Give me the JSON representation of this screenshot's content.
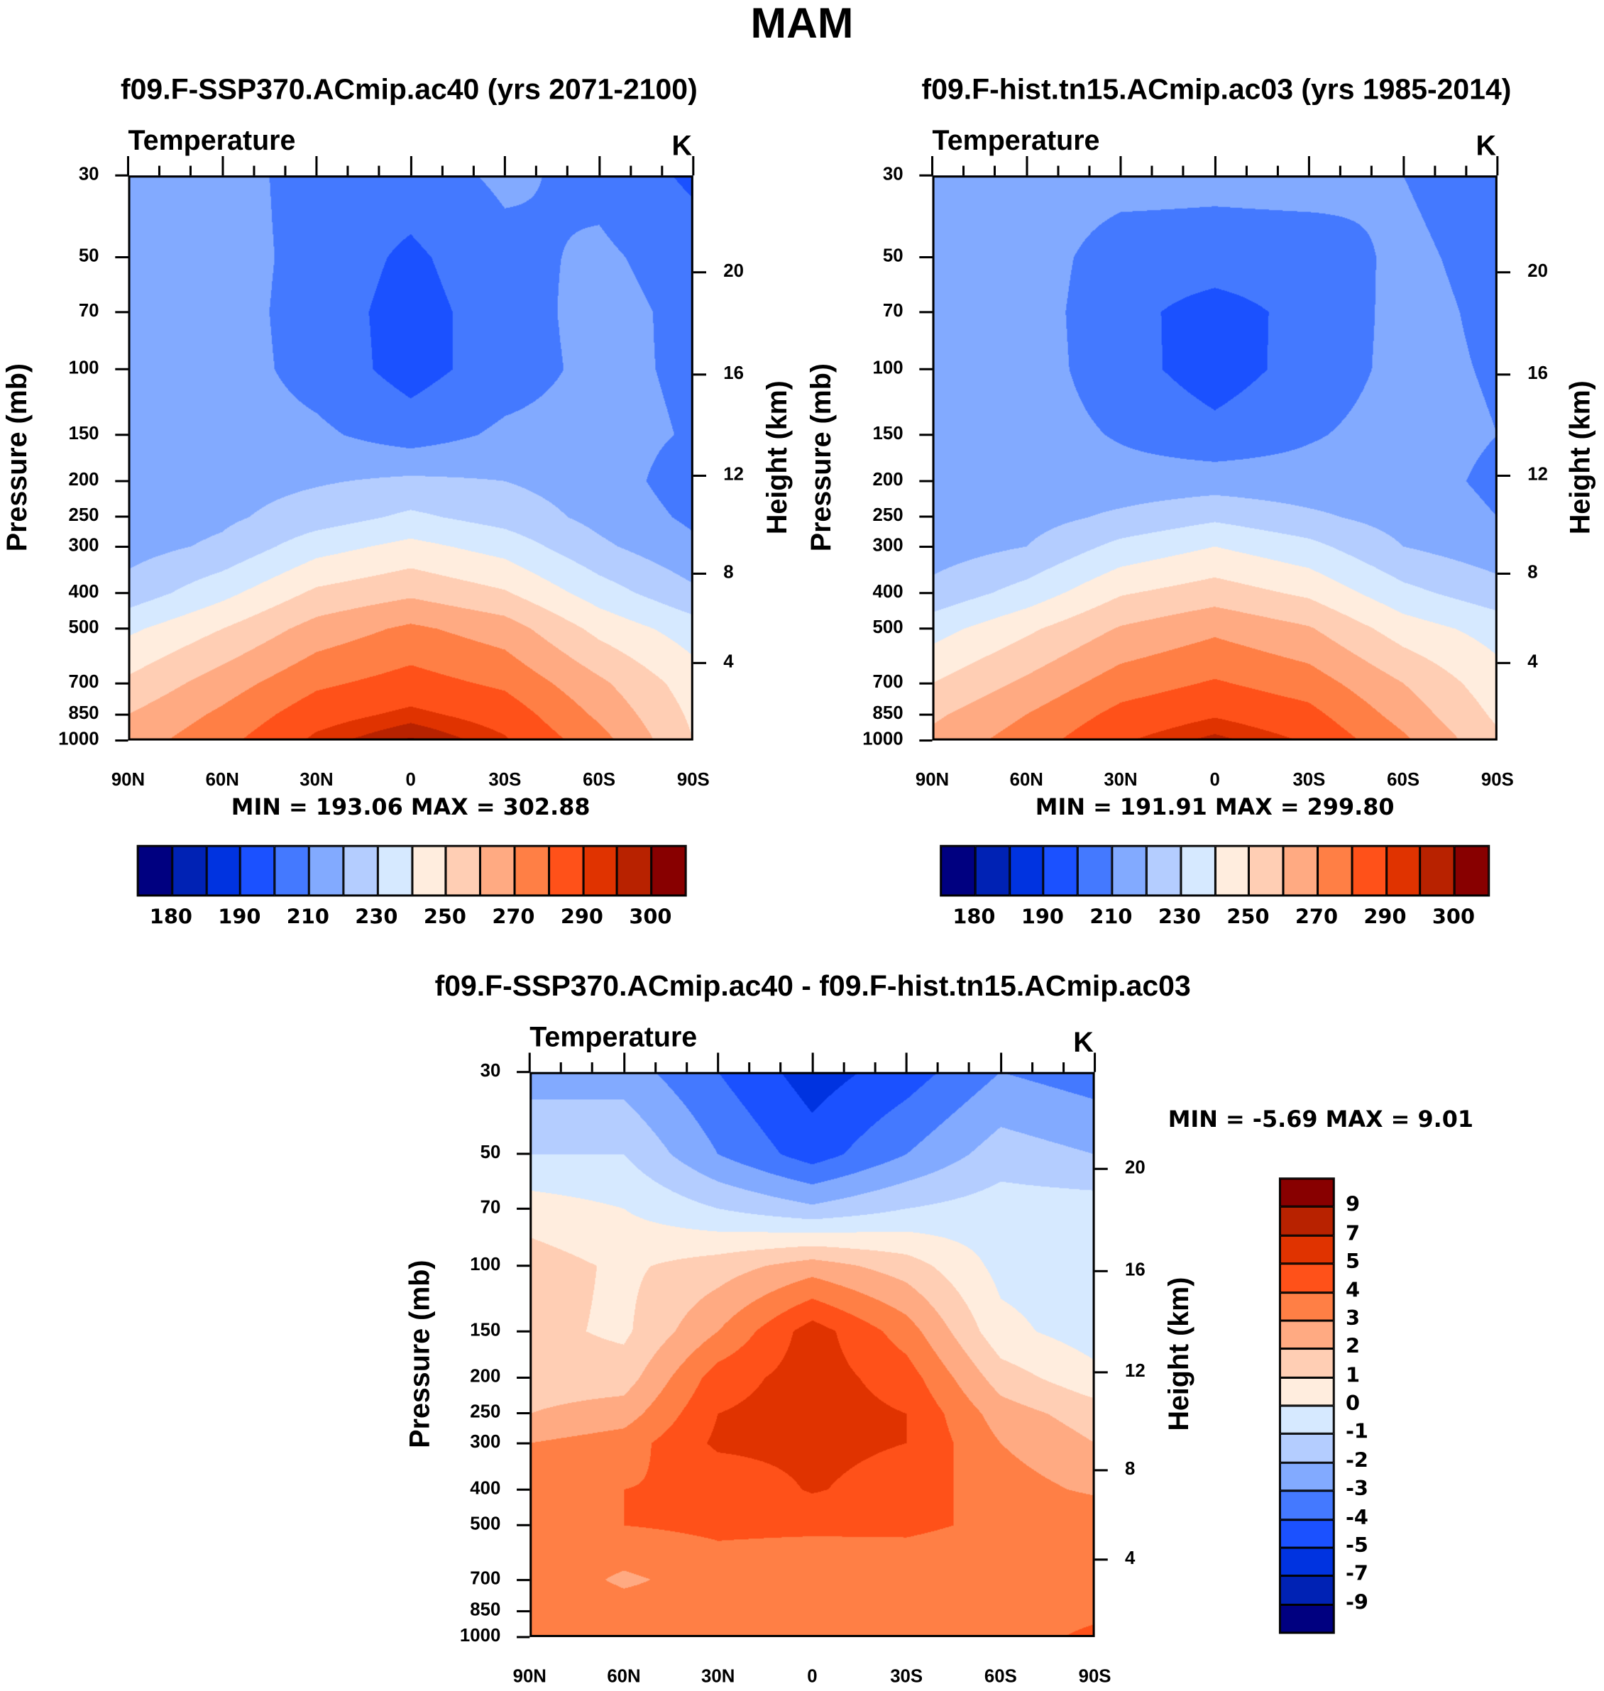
{
  "page_title": "MAM",
  "colors": [
    "#000080",
    "#0022b4",
    "#0033e0",
    "#1b51ff",
    "#4479ff",
    "#82aaff",
    "#b4cdff",
    "#d6e9ff",
    "#ffedde",
    "#ffceb4",
    "#ffaa82",
    "#ff7f45",
    "#ff5119",
    "#e03300",
    "#b82200",
    "#880000"
  ],
  "chart_data": [
    {
      "type": "heatmap",
      "title": "f09.F-SSP370.ACmip.ac40 (yrs 2071-2100)",
      "variable_label": "Temperature",
      "units": "K",
      "ylabel": "Pressure (mb)",
      "ylabel_right": "Height (km)",
      "x_ticks": [
        "90N",
        "60N",
        "30N",
        "0",
        "30S",
        "60S",
        "90S"
      ],
      "x_values": [
        90,
        60,
        30,
        0,
        -30,
        -60,
        -90
      ],
      "pressure_levels": [
        30,
        50,
        70,
        100,
        150,
        200,
        250,
        300,
        400,
        500,
        700,
        850,
        1000
      ],
      "pressure_tick_labels": [
        "30",
        "50",
        "70",
        "100",
        "150",
        "200",
        "250",
        "300",
        "400",
        "500",
        "700",
        "850",
        "1000"
      ],
      "height_ticks": [
        "20",
        "16",
        "12",
        "8",
        "4"
      ],
      "min_max_text": "MIN = 193.06  MAX = 302.88",
      "contour_levels": [
        180,
        185,
        190,
        200,
        210,
        220,
        230,
        240,
        250,
        260,
        270,
        280,
        290,
        295,
        300
      ],
      "colorbar_labels": [
        "180",
        "190",
        "210",
        "230",
        "250",
        "270",
        "290",
        "300"
      ],
      "values": [
        [
          215,
          215,
          205,
          205,
          212,
          207,
          198
        ],
        [
          215,
          215,
          206,
          198,
          207,
          212,
          205
        ],
        [
          215,
          215,
          205,
          196,
          205,
          214,
          207
        ],
        [
          215,
          215,
          206,
          196,
          205,
          213,
          208
        ],
        [
          215,
          215,
          212,
          205,
          212,
          214,
          209
        ],
        [
          214,
          216,
          219,
          222,
          220,
          215,
          205
        ],
        [
          214,
          218,
          225,
          232,
          226,
          217,
          208
        ],
        [
          216,
          222,
          236,
          243,
          236,
          222,
          212
        ],
        [
          224,
          237,
          252,
          258,
          251,
          235,
          222
        ],
        [
          238,
          250,
          264,
          272,
          265,
          247,
          235
        ],
        [
          252,
          265,
          278,
          284,
          278,
          262,
          245
        ],
        [
          260,
          272,
          286,
          292,
          286,
          268,
          248
        ],
        [
          265,
          277,
          292,
          301,
          291,
          274,
          250
        ]
      ]
    },
    {
      "type": "heatmap",
      "title": "f09.F-hist.tn15.ACmip.ac03 (yrs 1985-2014)",
      "variable_label": "Temperature",
      "units": "K",
      "ylabel": "Pressure (mb)",
      "ylabel_right": "Height (km)",
      "x_ticks": [
        "90N",
        "60N",
        "30N",
        "0",
        "30S",
        "60S",
        "90S"
      ],
      "x_values": [
        90,
        60,
        30,
        0,
        -30,
        -60,
        -90
      ],
      "pressure_levels": [
        30,
        50,
        70,
        100,
        150,
        200,
        250,
        300,
        400,
        500,
        700,
        850,
        1000
      ],
      "pressure_tick_labels": [
        "30",
        "50",
        "70",
        "100",
        "150",
        "200",
        "250",
        "300",
        "400",
        "500",
        "700",
        "850",
        "1000"
      ],
      "height_ticks": [
        "20",
        "16",
        "12",
        "8",
        "4"
      ],
      "min_max_text": "MIN = 191.91  MAX = 299.80",
      "contour_levels": [
        180,
        185,
        190,
        200,
        210,
        220,
        230,
        240,
        250,
        260,
        270,
        280,
        290,
        295,
        300
      ],
      "colorbar_labels": [
        "180",
        "190",
        "210",
        "230",
        "250",
        "270",
        "290",
        "300"
      ],
      "values": [
        [
          215,
          215,
          214,
          213,
          214,
          210,
          205
        ],
        [
          215,
          215,
          205,
          205,
          205,
          212,
          207
        ],
        [
          215,
          215,
          203,
          196,
          203,
          213,
          208
        ],
        [
          215,
          215,
          204,
          195,
          204,
          213,
          209
        ],
        [
          215,
          215,
          209,
          203,
          209,
          214,
          210
        ],
        [
          214,
          215,
          214,
          215,
          214,
          214,
          208
        ],
        [
          214,
          216,
          222,
          228,
          222,
          216,
          210
        ],
        [
          215,
          220,
          233,
          240,
          233,
          220,
          214
        ],
        [
          223,
          234,
          249,
          255,
          248,
          233,
          224
        ],
        [
          236,
          248,
          261,
          268,
          261,
          245,
          236
        ],
        [
          250,
          262,
          275,
          281,
          275,
          260,
          244
        ],
        [
          258,
          270,
          283,
          289,
          283,
          266,
          248
        ],
        [
          263,
          275,
          289,
          297,
          289,
          272,
          252
        ]
      ]
    },
    {
      "type": "heatmap",
      "title": "f09.F-SSP370.ACmip.ac40 - f09.F-hist.tn15.ACmip.ac03",
      "variable_label": "Temperature",
      "units": "K",
      "ylabel": "Pressure (mb)",
      "ylabel_right": "Height (km)",
      "x_ticks": [
        "90N",
        "60N",
        "30N",
        "0",
        "30S",
        "60S",
        "90S"
      ],
      "x_values": [
        90,
        60,
        30,
        0,
        -30,
        -60,
        -90
      ],
      "pressure_levels": [
        30,
        50,
        70,
        100,
        150,
        200,
        250,
        300,
        400,
        500,
        700,
        850,
        1000
      ],
      "pressure_tick_labels": [
        "30",
        "50",
        "70",
        "100",
        "150",
        "200",
        "250",
        "300",
        "400",
        "500",
        "700",
        "850",
        "1000"
      ],
      "height_ticks": [
        "20",
        "16",
        "12",
        "8",
        "4"
      ],
      "min_max_text": "MIN =  -5.69  MAX =   9.01",
      "contour_levels": [
        -9,
        -7,
        -5,
        -4,
        -3,
        -2,
        -1,
        0,
        1,
        2,
        3,
        4,
        5,
        7,
        9
      ],
      "colorbar_labels": [
        "-9",
        "-7",
        "-5",
        "-4",
        "-3",
        "-2",
        "-1",
        "0",
        "1",
        "2",
        "3",
        "4",
        "5",
        "7",
        "9"
      ],
      "values": [
        [
          -2.5,
          -2.5,
          -4,
          -5.5,
          -4.5,
          -3,
          -3.5
        ],
        [
          -1,
          -1,
          -3,
          -4.5,
          -3,
          -1.5,
          -2
        ],
        [
          0.5,
          0,
          -1,
          -1.8,
          -1,
          -0.5,
          -0.5
        ],
        [
          1.5,
          0.8,
          1.5,
          2.5,
          1.5,
          -0.3,
          -0.5
        ],
        [
          1.3,
          0.8,
          3,
          5.5,
          3.5,
          0.3,
          -0.5
        ],
        [
          1.5,
          1.5,
          4.5,
          5.5,
          4.5,
          1.5,
          0.3
        ],
        [
          2,
          2.5,
          5,
          5.5,
          5,
          2.5,
          1.5
        ],
        [
          3,
          3.5,
          5.2,
          5.3,
          5,
          3,
          2
        ],
        [
          3.5,
          4,
          4.2,
          5.1,
          4.5,
          3.5,
          2.8
        ],
        [
          3.8,
          4,
          4.2,
          4.2,
          4.2,
          3.8,
          4
        ],
        [
          3.8,
          2.8,
          3.5,
          3.2,
          3.3,
          3.2,
          3.5
        ],
        [
          4,
          3.5,
          3.5,
          3.2,
          3.2,
          3.5,
          3.8
        ],
        [
          4,
          3.8,
          3.5,
          3.2,
          3.2,
          3.6,
          4.2
        ]
      ]
    }
  ]
}
